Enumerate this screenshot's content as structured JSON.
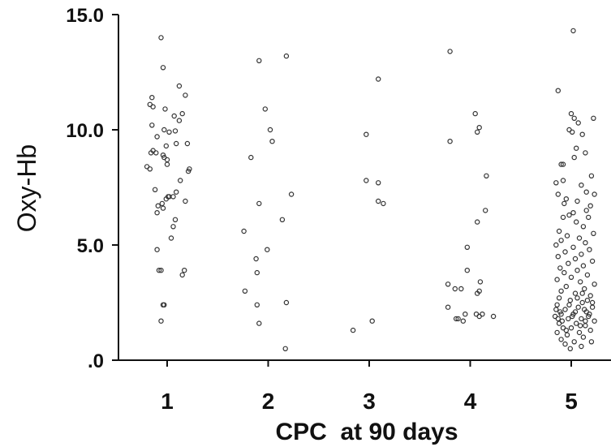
{
  "chart_data": {
    "type": "scatter",
    "title": "",
    "xlabel": "CPC  at 90 days",
    "ylabel": "Oxy-Hb",
    "categories": [
      "1",
      "2",
      "3",
      "4",
      "5"
    ],
    "yticks": [
      "15.0",
      "10.0",
      "5.0",
      ".0"
    ],
    "ytick_values": [
      15,
      10,
      5,
      0
    ],
    "ylim": [
      0,
      15
    ],
    "xlim": [
      0.4,
      5.2
    ],
    "grid": false,
    "legend": "none",
    "point_color": "#333333",
    "series": [
      {
        "category": "1",
        "points": [
          [
            0.94,
            14.0
          ],
          [
            0.96,
            12.7
          ],
          [
            1.12,
            11.9
          ],
          [
            0.85,
            11.4
          ],
          [
            1.18,
            11.5
          ],
          [
            0.83,
            11.1
          ],
          [
            0.86,
            11.0
          ],
          [
            0.98,
            10.9
          ],
          [
            1.15,
            10.7
          ],
          [
            1.07,
            10.6
          ],
          [
            1.12,
            10.4
          ],
          [
            0.85,
            10.2
          ],
          [
            0.97,
            10.0
          ],
          [
            1.02,
            9.9
          ],
          [
            1.08,
            9.95
          ],
          [
            0.9,
            9.7
          ],
          [
            1.09,
            9.4
          ],
          [
            1.2,
            9.4
          ],
          [
            0.99,
            9.3
          ],
          [
            0.86,
            9.1
          ],
          [
            0.84,
            9.0
          ],
          [
            0.89,
            9.0
          ],
          [
            0.96,
            8.9
          ],
          [
            0.97,
            8.8
          ],
          [
            1.0,
            8.7
          ],
          [
            0.8,
            8.4
          ],
          [
            0.83,
            8.3
          ],
          [
            1.0,
            8.5
          ],
          [
            1.22,
            8.3
          ],
          [
            1.21,
            8.2
          ],
          [
            1.13,
            7.8
          ],
          [
            0.88,
            7.4
          ],
          [
            1.09,
            7.3
          ],
          [
            1.06,
            7.1
          ],
          [
            1.02,
            7.1
          ],
          [
            1.01,
            7.1
          ],
          [
            0.99,
            7.0
          ],
          [
            1.18,
            6.9
          ],
          [
            0.95,
            6.8
          ],
          [
            0.91,
            6.7
          ],
          [
            0.96,
            6.6
          ],
          [
            0.9,
            6.4
          ],
          [
            1.08,
            6.1
          ],
          [
            1.06,
            5.8
          ],
          [
            1.04,
            5.3
          ],
          [
            0.9,
            4.8
          ],
          [
            0.92,
            3.9
          ],
          [
            0.94,
            3.9
          ],
          [
            1.17,
            3.9
          ],
          [
            1.15,
            3.7
          ],
          [
            0.96,
            2.4
          ],
          [
            0.97,
            2.4
          ],
          [
            0.94,
            1.7
          ]
        ]
      },
      {
        "category": "2",
        "points": [
          [
            2.18,
            13.2
          ],
          [
            1.91,
            13.0
          ],
          [
            1.97,
            10.9
          ],
          [
            2.02,
            10.0
          ],
          [
            2.04,
            9.5
          ],
          [
            1.83,
            8.8
          ],
          [
            2.23,
            7.2
          ],
          [
            1.91,
            6.8
          ],
          [
            2.14,
            6.1
          ],
          [
            1.76,
            5.6
          ],
          [
            1.99,
            4.8
          ],
          [
            1.88,
            4.4
          ],
          [
            1.89,
            3.8
          ],
          [
            1.77,
            3.0
          ],
          [
            2.18,
            2.5
          ],
          [
            1.89,
            2.4
          ],
          [
            1.91,
            1.6
          ],
          [
            2.17,
            0.5
          ]
        ]
      },
      {
        "category": "3",
        "points": [
          [
            3.09,
            12.2
          ],
          [
            2.97,
            9.8
          ],
          [
            2.97,
            7.8
          ],
          [
            3.09,
            7.7
          ],
          [
            3.09,
            6.9
          ],
          [
            3.14,
            6.8
          ],
          [
            3.03,
            1.7
          ],
          [
            2.84,
            1.3
          ]
        ]
      },
      {
        "category": "4",
        "points": [
          [
            3.8,
            13.4
          ],
          [
            4.05,
            10.7
          ],
          [
            4.09,
            10.1
          ],
          [
            4.07,
            9.9
          ],
          [
            3.8,
            9.5
          ],
          [
            4.16,
            8.0
          ],
          [
            4.15,
            6.5
          ],
          [
            4.07,
            6.0
          ],
          [
            3.97,
            4.9
          ],
          [
            3.97,
            3.9
          ],
          [
            4.1,
            3.4
          ],
          [
            3.78,
            3.3
          ],
          [
            3.85,
            3.1
          ],
          [
            3.91,
            3.1
          ],
          [
            4.09,
            3.0
          ],
          [
            4.07,
            2.9
          ],
          [
            3.78,
            2.3
          ],
          [
            4.06,
            2.0
          ],
          [
            4.12,
            2.0
          ],
          [
            3.95,
            2.0
          ],
          [
            4.09,
            1.9
          ],
          [
            4.23,
            1.9
          ],
          [
            3.88,
            1.8
          ],
          [
            3.93,
            1.7
          ],
          [
            3.86,
            1.8
          ]
        ]
      },
      {
        "category": "5",
        "points": [
          [
            5.02,
            14.3
          ],
          [
            4.87,
            11.7
          ],
          [
            5.0,
            10.7
          ],
          [
            5.03,
            10.5
          ],
          [
            5.22,
            10.5
          ],
          [
            5.07,
            10.3
          ],
          [
            4.98,
            10.0
          ],
          [
            5.01,
            9.9
          ],
          [
            5.11,
            9.8
          ],
          [
            5.05,
            9.2
          ],
          [
            5.14,
            9.0
          ],
          [
            5.03,
            8.8
          ],
          [
            4.9,
            8.5
          ],
          [
            4.92,
            8.5
          ],
          [
            5.2,
            8.0
          ],
          [
            4.92,
            7.8
          ],
          [
            4.85,
            7.7
          ],
          [
            5.1,
            7.6
          ],
          [
            5.15,
            7.3
          ],
          [
            5.23,
            7.2
          ],
          [
            4.87,
            7.2
          ],
          [
            4.95,
            7.0
          ],
          [
            5.06,
            6.9
          ],
          [
            4.93,
            6.8
          ],
          [
            5.19,
            6.7
          ],
          [
            5.15,
            6.5
          ],
          [
            5.02,
            6.4
          ],
          [
            4.98,
            6.3
          ],
          [
            5.17,
            6.2
          ],
          [
            4.92,
            6.2
          ],
          [
            5.05,
            6.0
          ],
          [
            5.12,
            5.8
          ],
          [
            4.88,
            5.6
          ],
          [
            5.22,
            5.5
          ],
          [
            4.96,
            5.4
          ],
          [
            5.08,
            5.3
          ],
          [
            4.9,
            5.2
          ],
          [
            5.14,
            5.1
          ],
          [
            4.85,
            5.0
          ],
          [
            5.02,
            4.9
          ],
          [
            5.18,
            4.8
          ],
          [
            4.94,
            4.7
          ],
          [
            5.1,
            4.6
          ],
          [
            4.87,
            4.5
          ],
          [
            5.04,
            4.4
          ],
          [
            5.21,
            4.3
          ],
          [
            4.97,
            4.2
          ],
          [
            5.12,
            4.1
          ],
          [
            4.89,
            4.0
          ],
          [
            5.06,
            3.9
          ],
          [
            4.93,
            3.8
          ],
          [
            5.16,
            3.7
          ],
          [
            5.0,
            3.6
          ],
          [
            4.86,
            3.5
          ],
          [
            5.09,
            3.4
          ],
          [
            5.23,
            3.3
          ],
          [
            4.95,
            3.2
          ],
          [
            5.13,
            3.1
          ],
          [
            4.9,
            3.0
          ],
          [
            5.04,
            2.9
          ],
          [
            5.19,
            2.8
          ],
          [
            4.88,
            2.7
          ],
          [
            4.99,
            2.6
          ],
          [
            5.11,
            2.5
          ],
          [
            4.86,
            2.4
          ],
          [
            5.07,
            2.3
          ],
          [
            5.21,
            2.3
          ],
          [
            4.94,
            2.2
          ],
          [
            5.15,
            2.1
          ],
          [
            4.9,
            2.0
          ],
          [
            5.02,
            2.0
          ],
          [
            5.17,
            1.9
          ],
          [
            4.84,
            1.9
          ],
          [
            4.97,
            1.8
          ],
          [
            5.1,
            1.8
          ],
          [
            5.23,
            1.7
          ],
          [
            4.88,
            1.6
          ],
          [
            5.05,
            1.6
          ],
          [
            5.14,
            1.5
          ],
          [
            4.92,
            1.4
          ],
          [
            5.0,
            1.4
          ],
          [
            5.19,
            1.3
          ],
          [
            4.86,
            1.2
          ],
          [
            5.08,
            1.2
          ],
          [
            4.96,
            1.1
          ],
          [
            5.12,
            1.0
          ],
          [
            4.9,
            0.9
          ],
          [
            5.03,
            0.8
          ],
          [
            5.2,
            0.8
          ],
          [
            4.94,
            0.7
          ],
          [
            5.1,
            0.6
          ],
          [
            4.99,
            0.5
          ],
          [
            5.16,
            2.6
          ],
          [
            4.85,
            2.2
          ],
          [
            5.06,
            2.7
          ],
          [
            4.91,
            1.7
          ],
          [
            5.13,
            2.2
          ],
          [
            5.01,
            1.9
          ],
          [
            4.98,
            2.4
          ],
          [
            5.18,
            2.0
          ],
          [
            4.89,
            2.1
          ],
          [
            5.09,
            1.5
          ],
          [
            5.21,
            2.5
          ],
          [
            4.95,
            1.3
          ],
          [
            5.04,
            2.1
          ],
          [
            5.14,
            1.7
          ],
          [
            4.87,
            1.8
          ],
          [
            5.11,
            2.9
          ]
        ]
      }
    ]
  }
}
